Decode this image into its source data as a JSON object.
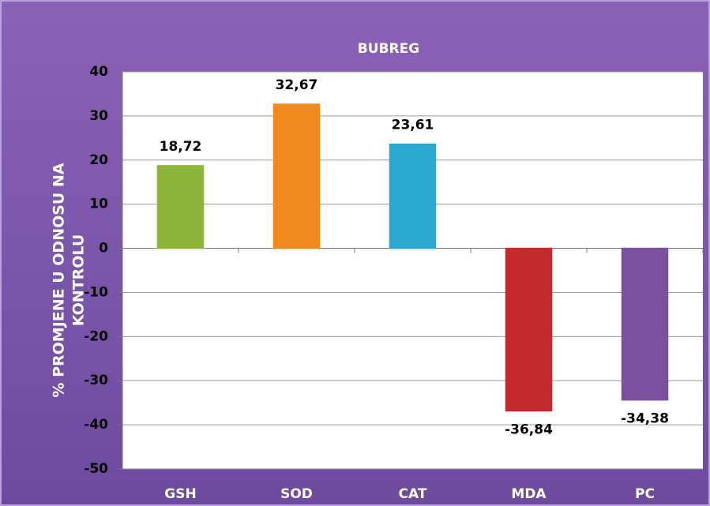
{
  "chart_data": {
    "type": "bar",
    "title": "BUBREG",
    "ylabel": [
      "% PROMJENE U ODNOSU NA",
      "KONTROLU"
    ],
    "categories": [
      "GSH",
      "SOD",
      "CAT",
      "MDA",
      "PC"
    ],
    "values": [
      18.72,
      32.67,
      23.61,
      -36.84,
      -34.38
    ],
    "value_labels": [
      "18,72",
      "32,67",
      "23,61",
      "-36,84",
      "-34,38"
    ],
    "colors": [
      "#8db539",
      "#f08a1e",
      "#2aa8cf",
      "#c22a2c",
      "#7b509f"
    ],
    "ylim": [
      -50,
      40
    ],
    "yticks": [
      -50,
      -40,
      -30,
      -20,
      -10,
      0,
      10,
      20,
      30,
      40
    ],
    "grid": true
  }
}
